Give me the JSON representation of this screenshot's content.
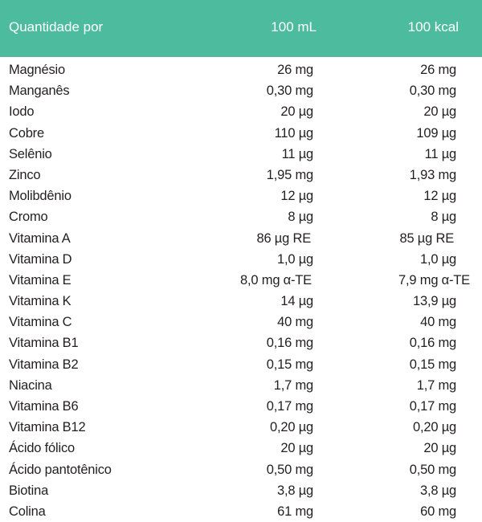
{
  "header": {
    "label": "Quantidade por",
    "col1": "100 mL",
    "col2": "100 kcal",
    "background": "#4dbb9e"
  },
  "rows": [
    {
      "name": "Magnésio",
      "per_100ml": "26 mg",
      "per_100kcal": "26 mg"
    },
    {
      "name": "Manganês",
      "per_100ml": "0,30 mg",
      "per_100kcal": "0,30 mg"
    },
    {
      "name": "Iodo",
      "per_100ml": "20 µg",
      "per_100kcal": "20 µg"
    },
    {
      "name": "Cobre",
      "per_100ml": "110 µg",
      "per_100kcal": "109 µg"
    },
    {
      "name": "Selênio",
      "per_100ml": "11 µg",
      "per_100kcal": "11 µg"
    },
    {
      "name": "Zinco",
      "per_100ml": "1,95 mg",
      "per_100kcal": "1,93 mg"
    },
    {
      "name": "Molibdênio",
      "per_100ml": "12 µg",
      "per_100kcal": "12 µg"
    },
    {
      "name": "Cromo",
      "per_100ml": "8 µg",
      "per_100kcal": "8 µg"
    },
    {
      "name": "Vitamina A",
      "per_100ml": "86 µg RE",
      "per_100kcal": "85 µg RE"
    },
    {
      "name": "Vitamina D",
      "per_100ml": "1,0 µg",
      "per_100kcal": "1,0 µg"
    },
    {
      "name": "Vitamina E",
      "per_100ml": "8,0 mg  α-TE",
      "per_100kcal": "7,9 mg  α-TE"
    },
    {
      "name": "Vitamina K",
      "per_100ml": "14 µg",
      "per_100kcal": "13,9 µg"
    },
    {
      "name": "Vitamina C",
      "per_100ml": "40 mg",
      "per_100kcal": "40 mg"
    },
    {
      "name": "Vitamina B1",
      "per_100ml": "0,16 mg",
      "per_100kcal": "0,16 mg"
    },
    {
      "name": "Vitamina B2",
      "per_100ml": "0,15 mg",
      "per_100kcal": "0,15 mg"
    },
    {
      "name": "Niacina",
      "per_100ml": "1,7 mg",
      "per_100kcal": "1,7 mg"
    },
    {
      "name": "Vitamina B6",
      "per_100ml": "0,17 mg",
      "per_100kcal": "0,17 mg"
    },
    {
      "name": "Vitamina B12",
      "per_100ml": "0,20 µg",
      "per_100kcal": "0,20 µg"
    },
    {
      "name": "Ácido fólico",
      "per_100ml": "20 µg",
      "per_100kcal": "20 µg"
    },
    {
      "name": "Ácido pantotênico",
      "per_100ml": "0,50 mg",
      "per_100kcal": "0,50 mg"
    },
    {
      "name": "Biotina",
      "per_100ml": "3,8 µg",
      "per_100kcal": "3,8 µg"
    },
    {
      "name": "Colina",
      "per_100ml": "61 mg",
      "per_100kcal": "60 mg"
    }
  ]
}
